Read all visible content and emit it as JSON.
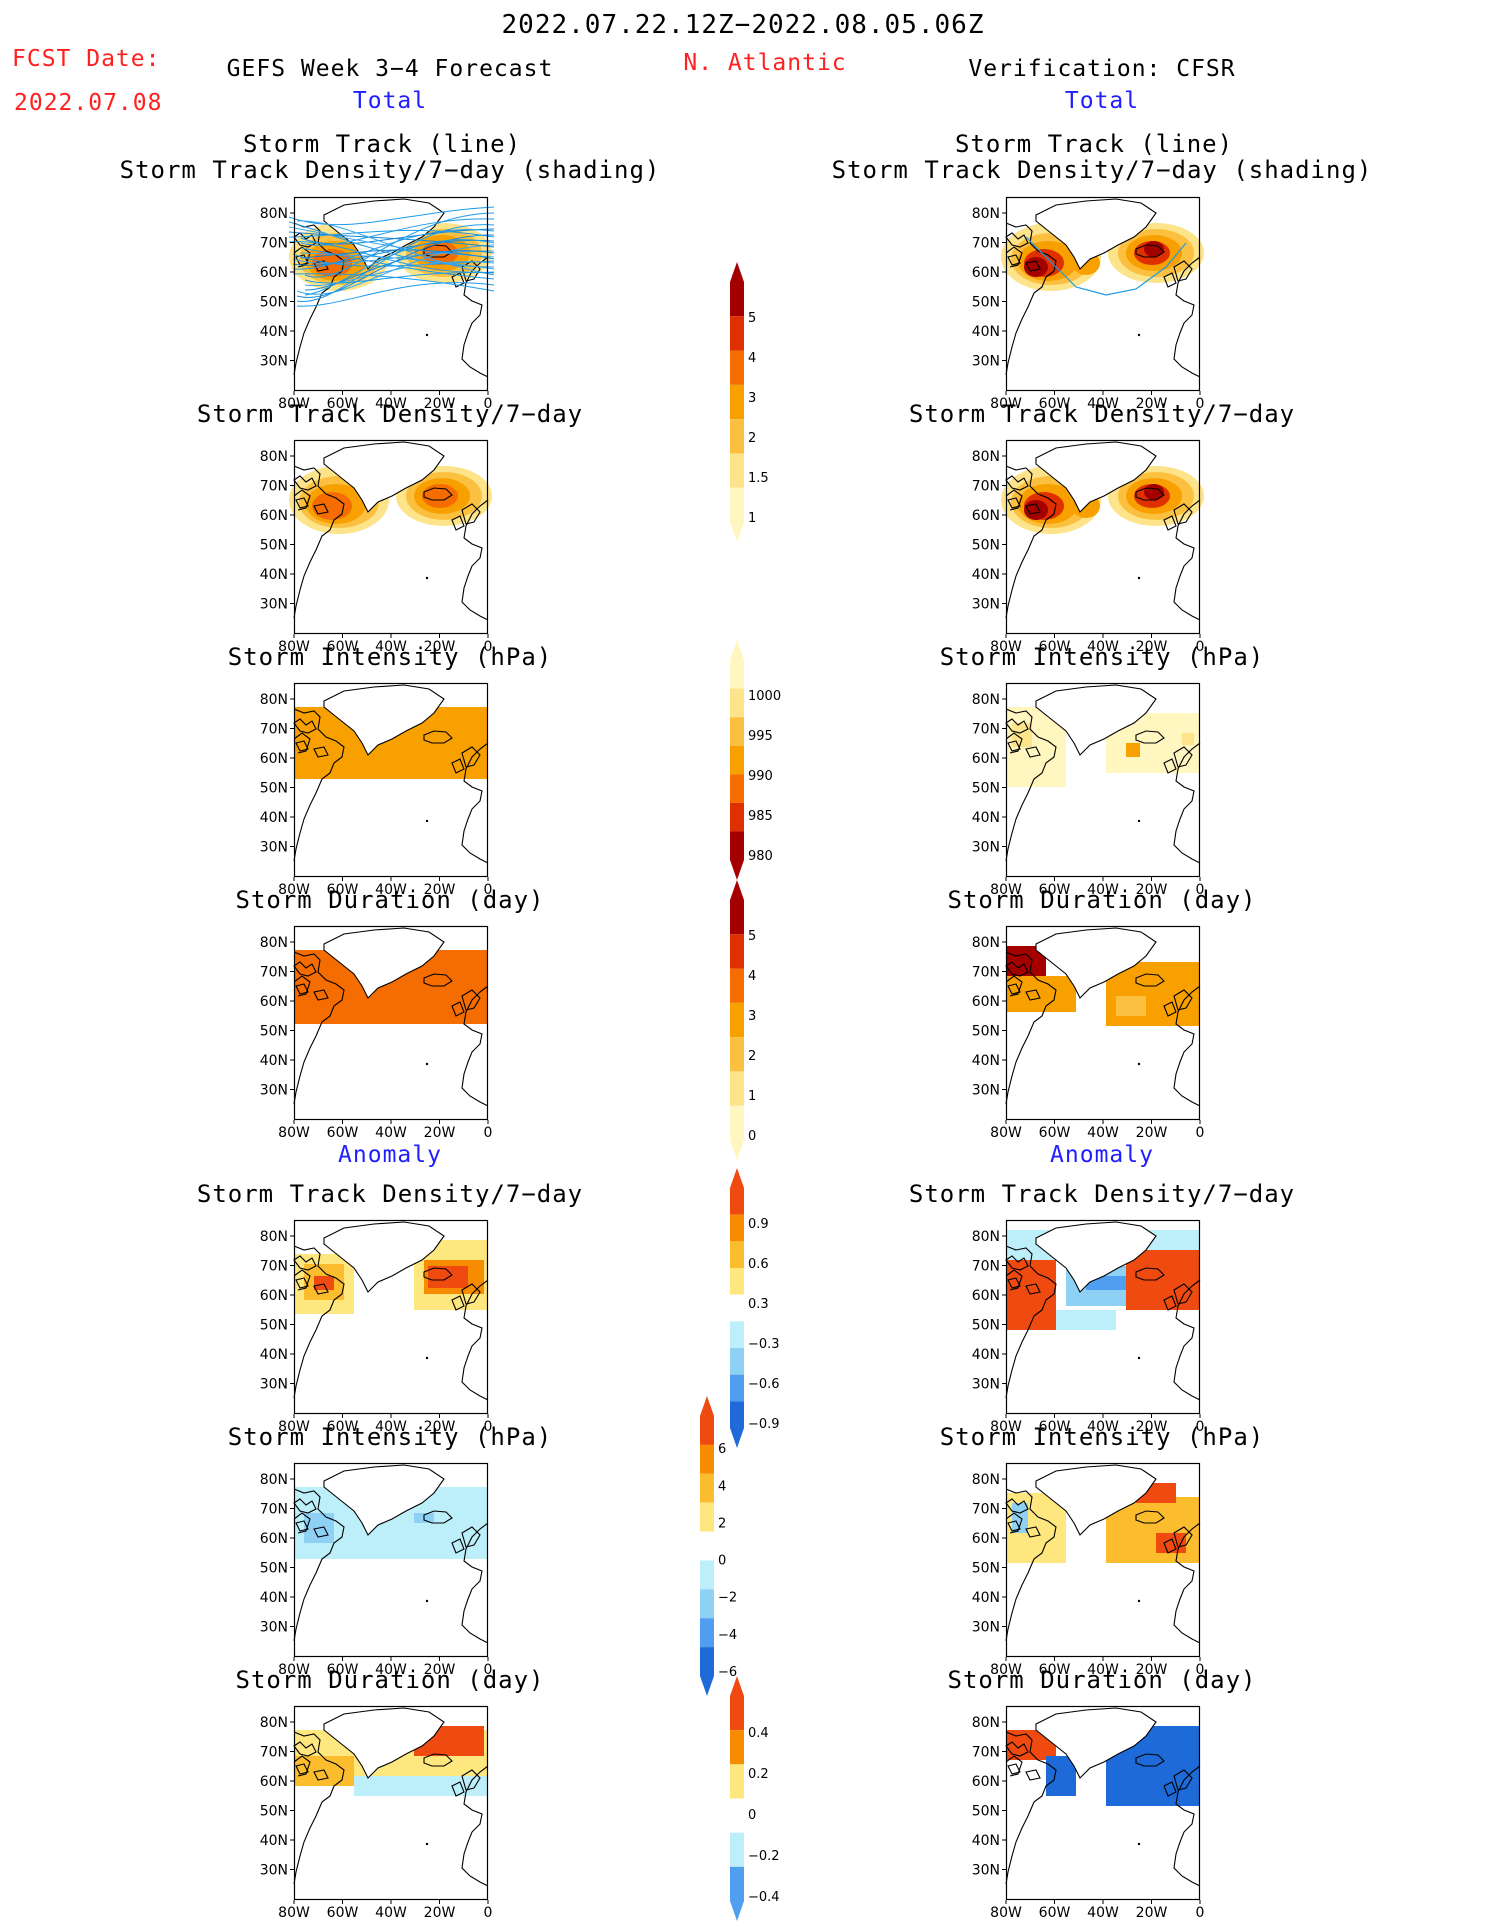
{
  "header": {
    "date_range": "2022.07.22.12Z−2022.08.05.06Z",
    "fcst_label": "FCST Date:",
    "fcst_date": "2022.07.08",
    "left_title": "GEFS Week 3−4 Forecast",
    "region": "N. Atlantic",
    "right_title": "Verification: CFSR",
    "total_label": "Total",
    "anomaly_label": "Anomaly"
  },
  "colors": {
    "accent_red": "#ff2020",
    "accent_blue": "#2020ff",
    "warm": [
      "#fff7bf",
      "#fde48a",
      "#fbc040",
      "#f8a000",
      "#f56c00",
      "#e03000",
      "#a50000"
    ],
    "anom_pos": [
      "#ffe780",
      "#fbbc2e",
      "#f88c00",
      "#ef4a10"
    ],
    "anom_neg": [
      "#bdeffa",
      "#8fd0f5",
      "#4f9ef0",
      "#1e6ad8"
    ]
  },
  "panel_titles": {
    "track_line": "Storm Track (line)",
    "track_shading": "Storm Track Density/7−day (shading)",
    "density": "Storm Track Density/7−day",
    "intensity": "Storm Intensity (hPa)",
    "duration": "Storm Duration (day)"
  },
  "axes": {
    "lat_labels": [
      "80N",
      "70N",
      "60N",
      "50N",
      "40N",
      "30N"
    ],
    "lon_labels": [
      "80W",
      "60W",
      "40W",
      "20W",
      "0"
    ]
  },
  "colorbars": {
    "density_total": [
      "5",
      "4",
      "3",
      "2",
      "1.5",
      "1"
    ],
    "intensity_total": [
      "1000",
      "995",
      "990",
      "985",
      "980"
    ],
    "duration_total": [
      "5",
      "4",
      "3",
      "2",
      "1",
      "0"
    ],
    "density_anom": [
      "0.9",
      "0.6",
      "0.3",
      "−0.3",
      "−0.6",
      "−0.9"
    ],
    "intensity_anom": [
      "6",
      "4",
      "2",
      "0",
      "−2",
      "−4",
      "−6"
    ],
    "duration_anom": [
      "0.4",
      "0.2",
      "0",
      "−0.2",
      "−0.4"
    ]
  }
}
